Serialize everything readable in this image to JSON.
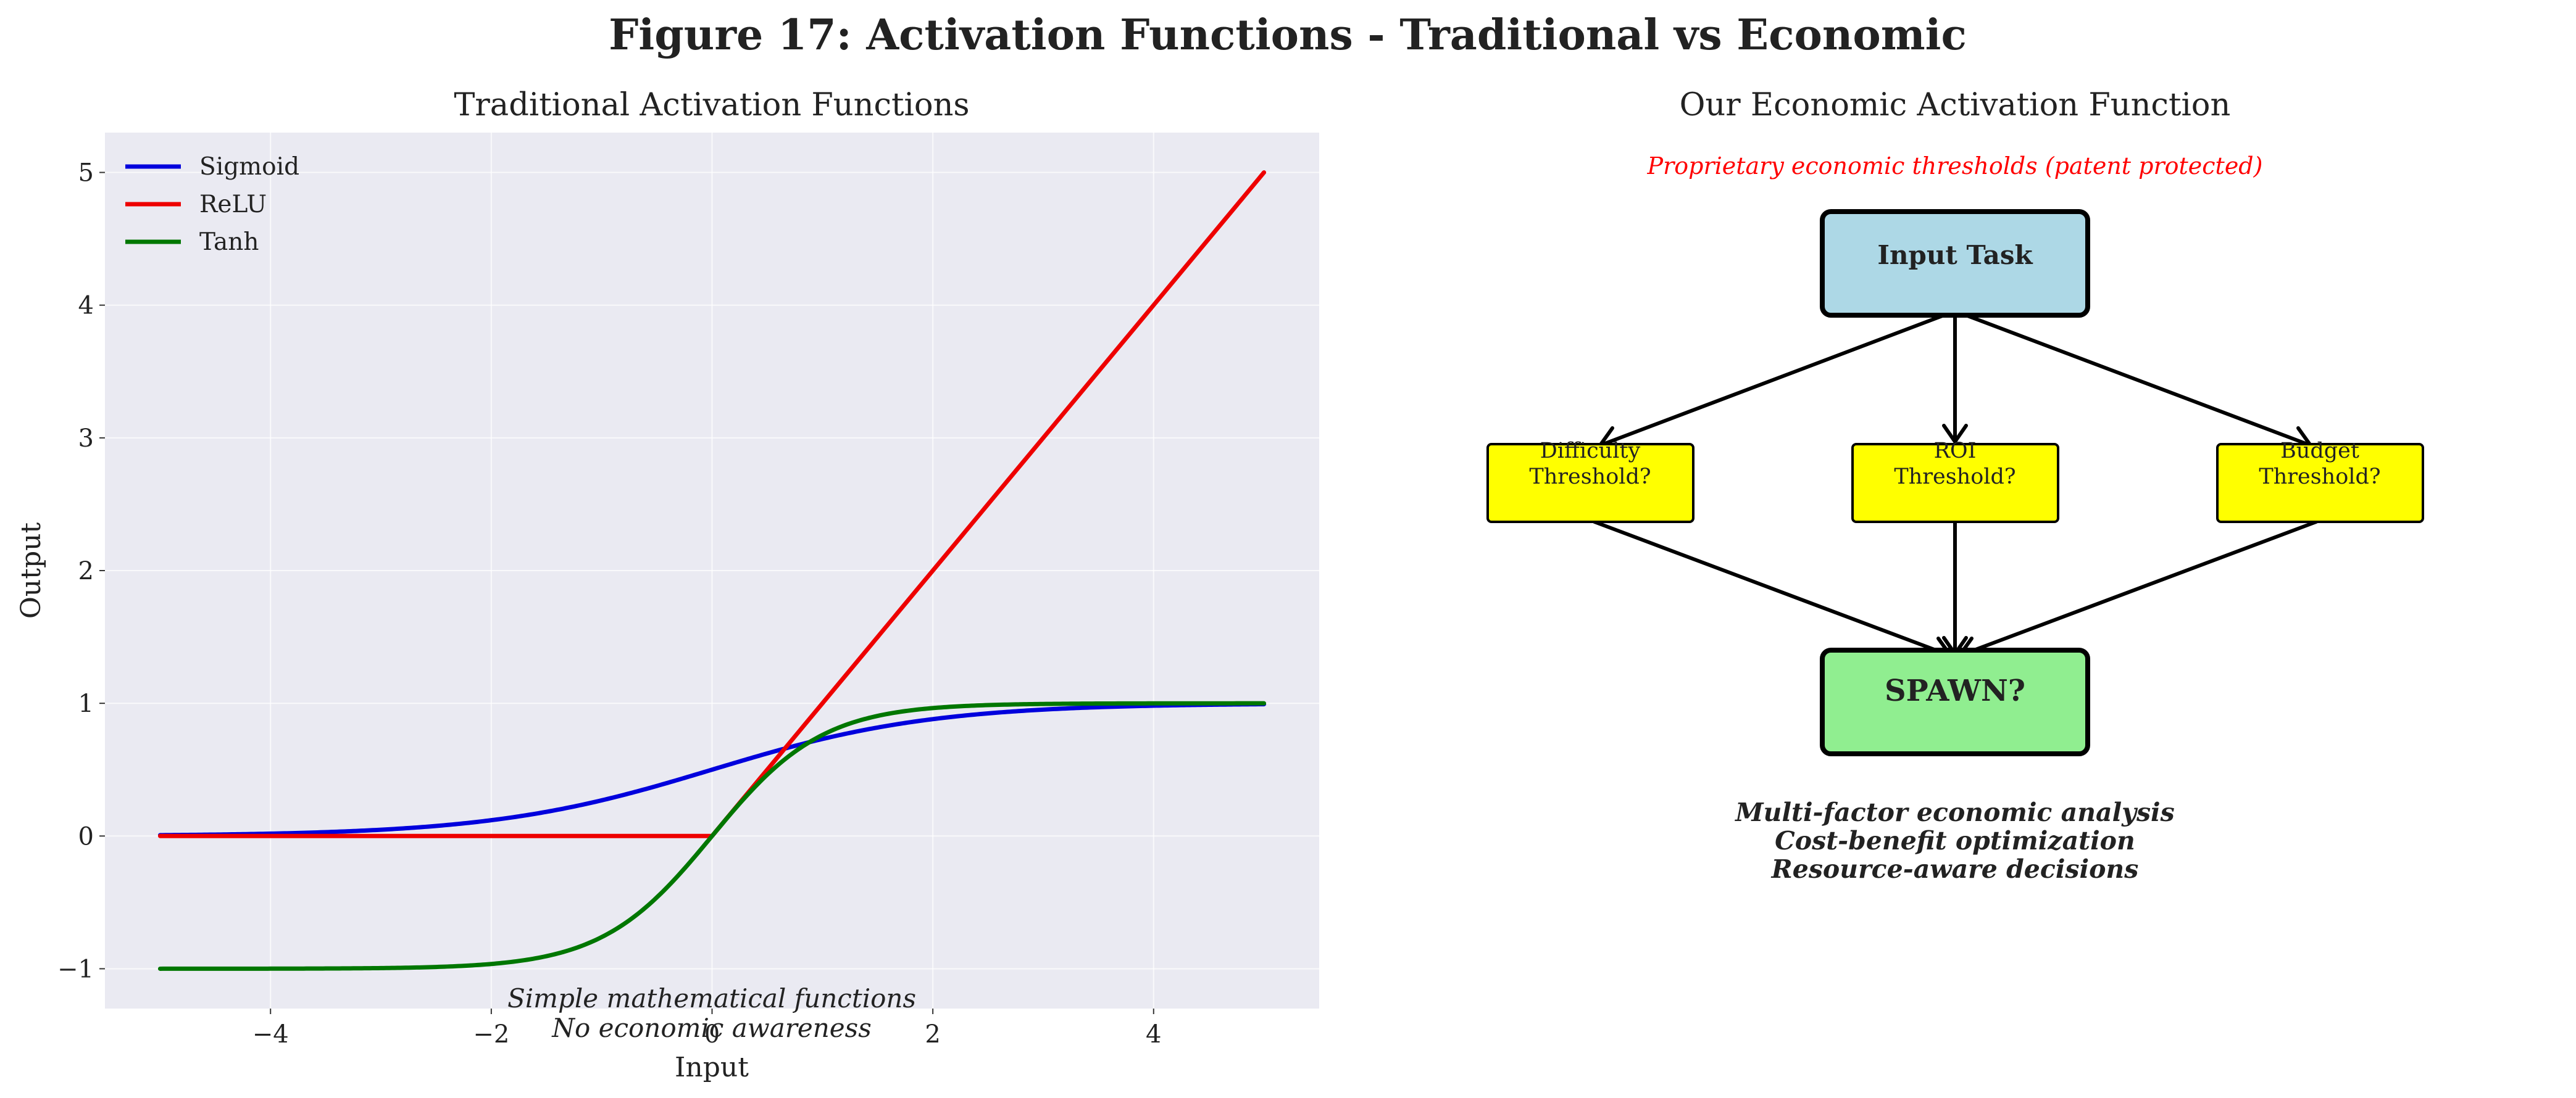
{
  "figure": {
    "title": "Figure 17: Activation Functions - Traditional vs Economic"
  },
  "chart_data": [
    {
      "type": "line",
      "title": "Traditional Activation Functions",
      "xlabel": "Input",
      "ylabel": "Output",
      "xlim": [
        -5.5,
        5.5
      ],
      "ylim": [
        -1.3,
        5.3
      ],
      "xticks": [
        -4,
        -2,
        0,
        2,
        4
      ],
      "yticks": [
        -1,
        0,
        1,
        2,
        3,
        4,
        5
      ],
      "grid": true,
      "legend_position": "upper-left",
      "annotation_lines": [
        "Simple mathematical functions",
        "No economic awareness"
      ],
      "x": [
        -5,
        -4.5,
        -4,
        -3.5,
        -3,
        -2.5,
        -2,
        -1.5,
        -1,
        -0.5,
        0,
        0.5,
        1,
        1.5,
        2,
        2.5,
        3,
        3.5,
        4,
        4.5,
        5
      ],
      "series": [
        {
          "name": "Sigmoid",
          "color": "#0000dd",
          "values": [
            0.0067,
            0.011,
            0.018,
            0.0293,
            0.0474,
            0.0759,
            0.1192,
            0.1824,
            0.2689,
            0.3775,
            0.5,
            0.6225,
            0.7311,
            0.8176,
            0.8808,
            0.9241,
            0.9526,
            0.9707,
            0.982,
            0.989,
            0.9933
          ]
        },
        {
          "name": "ReLU",
          "color": "#ee0000",
          "values": [
            0,
            0,
            0,
            0,
            0,
            0,
            0,
            0,
            0,
            0,
            0,
            0.5,
            1,
            1.5,
            2,
            2.5,
            3,
            3.5,
            4,
            4.5,
            5
          ]
        },
        {
          "name": "Tanh",
          "color": "#007700",
          "values": [
            -0.9999,
            -0.9998,
            -0.9993,
            -0.9982,
            -0.9951,
            -0.9866,
            -0.964,
            -0.9051,
            -0.7616,
            -0.4621,
            0,
            0.4621,
            0.7616,
            0.9051,
            0.964,
            0.9866,
            0.9951,
            0.9982,
            0.9993,
            0.9998,
            0.9999
          ]
        }
      ]
    }
  ],
  "diagram": {
    "title": "Our Economic Activation Function",
    "note": "Proprietary economic thresholds (patent protected)",
    "nodes": {
      "input_task": "Input Task",
      "difficulty_line1": "Difficulty",
      "difficulty_line2": "Threshold?",
      "roi_line1": "ROI",
      "roi_line2": "Threshold?",
      "budget_line1": "Budget",
      "budget_line2": "Threshold?",
      "spawn": "SPAWN?"
    },
    "summary_lines": [
      "Multi-factor economic analysis",
      "Cost-benefit optimization",
      "Resource-aware decisions"
    ],
    "colors": {
      "input": "#add8e6",
      "threshold": "#ffff00",
      "spawn": "#90ee90",
      "note": "#ff0000"
    }
  }
}
